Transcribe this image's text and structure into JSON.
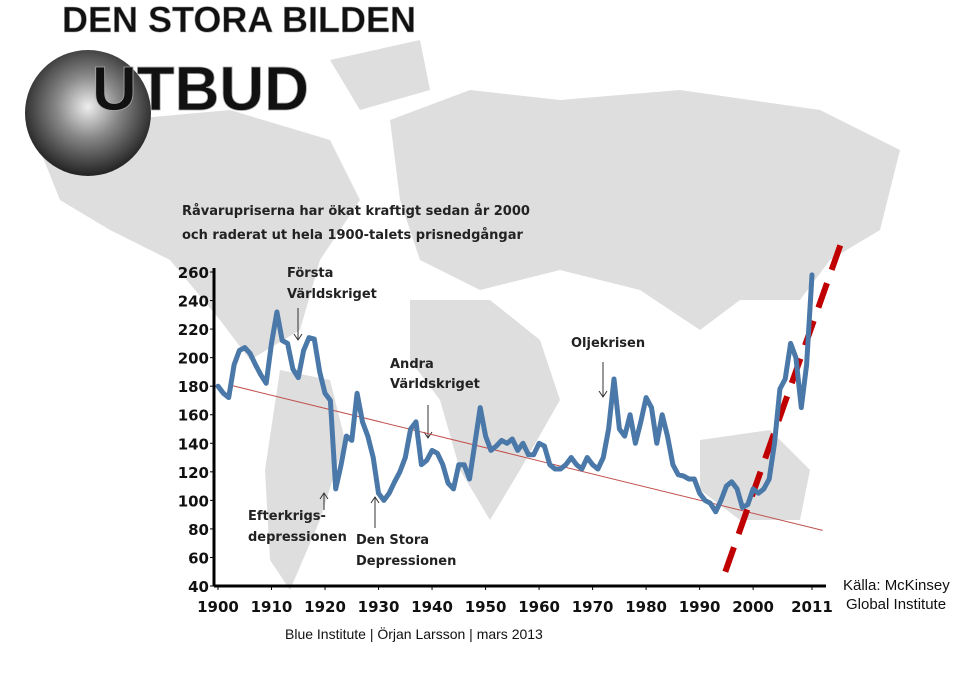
{
  "header": {
    "kicker": "DEN STORA BILDEN",
    "title": "UTBUD"
  },
  "chart_data": {
    "type": "line",
    "title_lines": [
      "Råvarupriserna har ökat kraftigt sedan år 2000",
      "och raderat ut hela 1900-talets prisnedgångar"
    ],
    "x": [
      1900,
      1901,
      1902,
      1903,
      1904,
      1905,
      1906,
      1907,
      1908,
      1909,
      1910,
      1911,
      1912,
      1913,
      1914,
      1915,
      1916,
      1917,
      1918,
      1919,
      1920,
      1921,
      1922,
      1923,
      1924,
      1925,
      1926,
      1927,
      1928,
      1929,
      1930,
      1931,
      1932,
      1933,
      1934,
      1935,
      1936,
      1937,
      1938,
      1939,
      1940,
      1941,
      1942,
      1943,
      1944,
      1945,
      1946,
      1947,
      1948,
      1949,
      1950,
      1951,
      1952,
      1953,
      1954,
      1955,
      1956,
      1957,
      1958,
      1959,
      1960,
      1961,
      1962,
      1963,
      1964,
      1965,
      1966,
      1967,
      1968,
      1969,
      1970,
      1971,
      1972,
      1973,
      1974,
      1975,
      1976,
      1977,
      1978,
      1979,
      1980,
      1981,
      1982,
      1983,
      1984,
      1985,
      1986,
      1987,
      1988,
      1989,
      1990,
      1991,
      1992,
      1993,
      1994,
      1995,
      1996,
      1997,
      1998,
      1999,
      2000,
      2001,
      2002,
      2003,
      2004,
      2005,
      2006,
      2007,
      2008,
      2009,
      2010,
      2011
    ],
    "series": [
      {
        "color": "#4a78a8",
        "values": [
          180,
          175,
          172,
          195,
          205,
          207,
          203,
          195,
          188,
          182,
          210,
          232,
          212,
          210,
          192,
          186,
          205,
          214,
          213,
          190,
          175,
          170,
          108,
          125,
          145,
          142,
          175,
          155,
          145,
          130,
          105,
          100,
          105,
          113,
          120,
          130,
          150,
          155,
          125,
          128,
          135,
          133,
          125,
          112,
          108,
          125,
          125,
          115,
          140,
          165,
          145,
          135,
          138,
          142,
          140,
          143,
          135,
          140,
          132,
          132,
          140,
          138,
          125,
          122,
          122,
          125,
          130,
          125,
          122,
          130,
          125,
          122,
          130,
          150,
          185,
          150,
          145,
          160,
          140,
          155,
          172,
          165,
          140,
          160,
          145,
          125,
          118,
          117,
          115,
          115,
          105,
          100,
          98,
          92,
          100,
          110,
          113,
          108,
          95,
          97,
          108,
          105,
          108,
          115,
          140,
          178,
          185,
          210,
          200,
          165,
          195,
          258
        ]
      }
    ],
    "trend_lines": [
      {
        "color": "#c0504d",
        "style": "solid",
        "x": [
          1902,
          2013
        ],
        "values": [
          181,
          79
        ]
      },
      {
        "color": "#c00000",
        "style": "dashed",
        "x": [
          1994.8,
          2016.6
        ],
        "values": [
          50,
          282
        ]
      }
    ],
    "xlim": [
      1900,
      2011
    ],
    "ylim": [
      40,
      260
    ],
    "xticks": [
      1900,
      1910,
      1920,
      1930,
      1940,
      1950,
      1960,
      1970,
      1980,
      1990,
      2000,
      2011
    ],
    "yticks": [
      40,
      60,
      80,
      100,
      120,
      140,
      160,
      180,
      200,
      220,
      240,
      260
    ],
    "annotations": [
      {
        "lines": [
          "Första",
          "Världskriget"
        ]
      },
      {
        "lines": [
          "Andra",
          "Världskriget"
        ]
      },
      {
        "lines": [
          "Oljekrisen"
        ]
      },
      {
        "lines": [
          "Efterkrigs-",
          "depressionen"
        ]
      },
      {
        "lines": [
          "Den Stora",
          "Depressionen"
        ]
      }
    ],
    "source_lines": [
      "Källa: McKinsey",
      "Global Institute"
    ]
  },
  "footer": "Blue Institute | Örjan Larsson | mars 2013"
}
